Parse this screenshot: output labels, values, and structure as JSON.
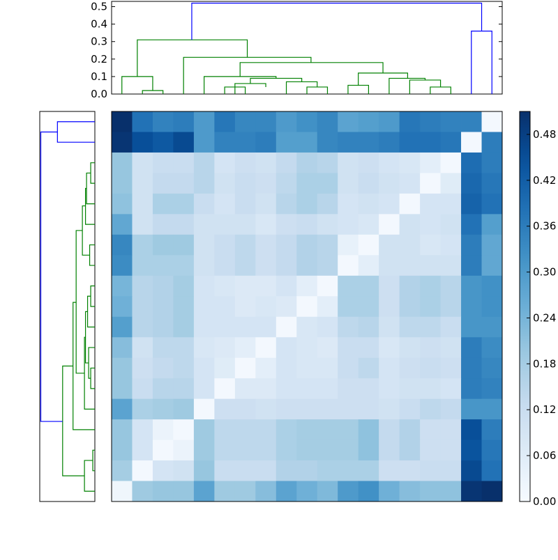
{
  "chart_data": [
    {
      "type": "heatmap",
      "title": "",
      "xlabel": "",
      "ylabel": "",
      "rows": 19,
      "cols": 19,
      "colormap": "Blues",
      "vmin": 0.0,
      "vmax": 0.51,
      "values": [
        [
          0.51,
          0.38,
          0.35,
          0.36,
          0.3,
          0.37,
          0.34,
          0.34,
          0.3,
          0.32,
          0.34,
          0.28,
          0.29,
          0.3,
          0.37,
          0.36,
          0.35,
          0.35,
          0.01
        ],
        [
          0.5,
          0.45,
          0.43,
          0.46,
          0.3,
          0.35,
          0.35,
          0.36,
          0.29,
          0.29,
          0.34,
          0.35,
          0.35,
          0.36,
          0.38,
          0.38,
          0.37,
          0.01,
          0.36
        ],
        [
          0.2,
          0.1,
          0.12,
          0.12,
          0.15,
          0.09,
          0.11,
          0.1,
          0.13,
          0.16,
          0.15,
          0.1,
          0.11,
          0.09,
          0.08,
          0.05,
          0.01,
          0.39,
          0.36
        ],
        [
          0.2,
          0.1,
          0.13,
          0.13,
          0.15,
          0.1,
          0.12,
          0.11,
          0.14,
          0.17,
          0.17,
          0.1,
          0.12,
          0.1,
          0.09,
          0.01,
          0.06,
          0.4,
          0.37
        ],
        [
          0.21,
          0.1,
          0.17,
          0.17,
          0.12,
          0.09,
          0.12,
          0.1,
          0.15,
          0.17,
          0.15,
          0.09,
          0.1,
          0.09,
          0.01,
          0.09,
          0.09,
          0.41,
          0.38
        ],
        [
          0.27,
          0.1,
          0.13,
          0.13,
          0.1,
          0.1,
          0.1,
          0.08,
          0.11,
          0.12,
          0.1,
          0.09,
          0.08,
          0.01,
          0.1,
          0.09,
          0.1,
          0.38,
          0.29
        ],
        [
          0.34,
          0.17,
          0.19,
          0.19,
          0.1,
          0.12,
          0.14,
          0.11,
          0.13,
          0.16,
          0.15,
          0.04,
          0.01,
          0.1,
          0.1,
          0.08,
          0.09,
          0.36,
          0.27
        ],
        [
          0.33,
          0.17,
          0.17,
          0.17,
          0.1,
          0.12,
          0.14,
          0.11,
          0.13,
          0.16,
          0.15,
          0.01,
          0.05,
          0.1,
          0.1,
          0.1,
          0.1,
          0.36,
          0.27
        ],
        [
          0.24,
          0.15,
          0.16,
          0.18,
          0.09,
          0.08,
          0.07,
          0.07,
          0.09,
          0.05,
          0.01,
          0.17,
          0.17,
          0.11,
          0.16,
          0.17,
          0.15,
          0.31,
          0.32
        ],
        [
          0.25,
          0.15,
          0.16,
          0.18,
          0.09,
          0.09,
          0.07,
          0.08,
          0.07,
          0.01,
          0.05,
          0.17,
          0.17,
          0.11,
          0.16,
          0.17,
          0.15,
          0.31,
          0.32
        ],
        [
          0.29,
          0.15,
          0.16,
          0.18,
          0.09,
          0.09,
          0.09,
          0.09,
          0.01,
          0.08,
          0.09,
          0.14,
          0.15,
          0.1,
          0.14,
          0.14,
          0.12,
          0.31,
          0.31
        ],
        [
          0.22,
          0.1,
          0.14,
          0.14,
          0.08,
          0.07,
          0.05,
          0.01,
          0.09,
          0.08,
          0.07,
          0.12,
          0.12,
          0.08,
          0.1,
          0.11,
          0.1,
          0.36,
          0.33
        ],
        [
          0.2,
          0.11,
          0.13,
          0.14,
          0.09,
          0.06,
          0.01,
          0.05,
          0.09,
          0.08,
          0.08,
          0.12,
          0.14,
          0.09,
          0.11,
          0.12,
          0.11,
          0.36,
          0.34
        ],
        [
          0.2,
          0.12,
          0.15,
          0.15,
          0.09,
          0.01,
          0.07,
          0.07,
          0.09,
          0.09,
          0.09,
          0.11,
          0.11,
          0.09,
          0.1,
          0.1,
          0.09,
          0.36,
          0.35
        ],
        [
          0.28,
          0.17,
          0.18,
          0.19,
          0.01,
          0.11,
          0.11,
          0.1,
          0.11,
          0.11,
          0.11,
          0.11,
          0.11,
          0.1,
          0.12,
          0.14,
          0.13,
          0.31,
          0.31
        ],
        [
          0.2,
          0.09,
          0.03,
          0.01,
          0.19,
          0.14,
          0.14,
          0.14,
          0.17,
          0.18,
          0.18,
          0.18,
          0.21,
          0.13,
          0.16,
          0.11,
          0.11,
          0.45,
          0.36
        ],
        [
          0.2,
          0.09,
          0.01,
          0.03,
          0.19,
          0.14,
          0.14,
          0.14,
          0.17,
          0.18,
          0.18,
          0.18,
          0.21,
          0.13,
          0.16,
          0.11,
          0.11,
          0.44,
          0.37
        ],
        [
          0.18,
          0.01,
          0.09,
          0.1,
          0.2,
          0.12,
          0.12,
          0.12,
          0.16,
          0.16,
          0.17,
          0.17,
          0.17,
          0.11,
          0.11,
          0.12,
          0.12,
          0.46,
          0.38
        ],
        [
          0.02,
          0.19,
          0.2,
          0.2,
          0.28,
          0.19,
          0.19,
          0.22,
          0.28,
          0.25,
          0.23,
          0.3,
          0.32,
          0.25,
          0.22,
          0.21,
          0.21,
          0.5,
          0.51
        ]
      ]
    },
    {
      "type": "dendrogram",
      "orientation": "top",
      "ylim": [
        0,
        0.53
      ],
      "yticks": [
        "0.0",
        "0.1",
        "0.2",
        "0.3",
        "0.4",
        "0.5"
      ],
      "links": [
        {
          "color": "#008000",
          "x": [
            1.5,
            1.5,
            2.5,
            2.5
          ],
          "y": [
            0,
            0.02,
            0.02,
            0
          ]
        },
        {
          "color": "#008000",
          "x": [
            0.5,
            0.5,
            2.0,
            2.0
          ],
          "y": [
            0,
            0.1,
            0.1,
            0.02
          ]
        },
        {
          "color": "#008000",
          "x": [
            5.5,
            5.5,
            6.5,
            6.5
          ],
          "y": [
            0,
            0.04,
            0.04,
            0
          ]
        },
        {
          "color": "#008000",
          "x": [
            6.0,
            6.0,
            7.5,
            7.5
          ],
          "y": [
            0,
            0.06,
            0.06,
            0.04
          ]
        },
        {
          "color": "#008000",
          "x": [
            9.5,
            9.5,
            10.5,
            10.5
          ],
          "y": [
            0,
            0.04,
            0.04,
            0
          ]
        },
        {
          "color": "#008000",
          "x": [
            8.5,
            8.5,
            10.0,
            10.0
          ],
          "y": [
            0,
            0.07,
            0.07,
            0.04
          ]
        },
        {
          "color": "#008000",
          "x": [
            6.75,
            6.75,
            9.25,
            9.25
          ],
          "y": [
            0.06,
            0.09,
            0.09,
            0.07
          ]
        },
        {
          "color": "#008000",
          "x": [
            4.5,
            4.5,
            8.0,
            8.0
          ],
          "y": [
            0,
            0.1,
            0.1,
            0.09
          ]
        },
        {
          "color": "#008000",
          "x": [
            11.5,
            11.5,
            12.5,
            12.5
          ],
          "y": [
            0,
            0.05,
            0.05,
            0
          ]
        },
        {
          "color": "#008000",
          "x": [
            15.5,
            15.5,
            16.5,
            16.5
          ],
          "y": [
            0,
            0.04,
            0.04,
            0
          ]
        },
        {
          "color": "#008000",
          "x": [
            14.5,
            14.5,
            16.0,
            16.0
          ],
          "y": [
            0,
            0.08,
            0.08,
            0.04
          ]
        },
        {
          "color": "#008000",
          "x": [
            13.5,
            13.5,
            15.25,
            15.25
          ],
          "y": [
            0,
            0.09,
            0.09,
            0.08
          ]
        },
        {
          "color": "#008000",
          "x": [
            12.0,
            12.0,
            14.4,
            14.4
          ],
          "y": [
            0.05,
            0.12,
            0.12,
            0.09
          ]
        },
        {
          "color": "#008000",
          "x": [
            6.25,
            6.25,
            13.2,
            13.2
          ],
          "y": [
            0.1,
            0.18,
            0.18,
            0.12
          ]
        },
        {
          "color": "#008000",
          "x": [
            3.5,
            3.5,
            9.7,
            9.7
          ],
          "y": [
            0,
            0.21,
            0.21,
            0.18
          ]
        },
        {
          "color": "#008000",
          "x": [
            1.25,
            1.25,
            6.6,
            6.6
          ],
          "y": [
            0.1,
            0.31,
            0.31,
            0.21
          ]
        },
        {
          "color": "#0000ff",
          "x": [
            17.5,
            17.5,
            18.5,
            18.5
          ],
          "y": [
            0,
            0.36,
            0.36,
            0
          ]
        },
        {
          "color": "#0000ff",
          "x": [
            3.9,
            3.9,
            18.0,
            18.0
          ],
          "y": [
            0.31,
            0.52,
            0.52,
            0.36
          ]
        }
      ]
    },
    {
      "type": "dendrogram",
      "orientation": "left",
      "xlim": [
        0,
        0.53
      ],
      "links": [
        {
          "color": "#008000",
          "x": [
            0,
            0.02,
            0.02,
            0
          ],
          "y": [
            1.5,
            1.5,
            2.5,
            2.5
          ]
        },
        {
          "color": "#008000",
          "x": [
            0,
            0.1,
            0.1,
            0.02
          ],
          "y": [
            0.5,
            0.5,
            2.0,
            2.0
          ]
        },
        {
          "color": "#008000",
          "x": [
            0,
            0.04,
            0.04,
            0
          ],
          "y": [
            5.5,
            5.5,
            6.5,
            6.5
          ]
        },
        {
          "color": "#008000",
          "x": [
            0.04,
            0.06,
            0.06,
            0
          ],
          "y": [
            6.0,
            6.0,
            7.5,
            7.5
          ]
        },
        {
          "color": "#008000",
          "x": [
            0,
            0.04,
            0.04,
            0
          ],
          "y": [
            9.5,
            9.5,
            10.5,
            10.5
          ]
        },
        {
          "color": "#008000",
          "x": [
            0,
            0.07,
            0.07,
            0.04
          ],
          "y": [
            8.5,
            8.5,
            10.0,
            10.0
          ]
        },
        {
          "color": "#008000",
          "x": [
            0.06,
            0.09,
            0.09,
            0.07
          ],
          "y": [
            6.75,
            6.75,
            9.25,
            9.25
          ]
        },
        {
          "color": "#008000",
          "x": [
            0,
            0.1,
            0.1,
            0.09
          ],
          "y": [
            4.5,
            4.5,
            8.0,
            8.0
          ]
        },
        {
          "color": "#008000",
          "x": [
            0,
            0.05,
            0.05,
            0
          ],
          "y": [
            11.5,
            11.5,
            12.5,
            12.5
          ]
        },
        {
          "color": "#008000",
          "x": [
            0,
            0.04,
            0.04,
            0
          ],
          "y": [
            15.5,
            15.5,
            16.5,
            16.5
          ]
        },
        {
          "color": "#008000",
          "x": [
            0,
            0.08,
            0.08,
            0.04
          ],
          "y": [
            14.5,
            14.5,
            16.0,
            16.0
          ]
        },
        {
          "color": "#008000",
          "x": [
            0,
            0.09,
            0.09,
            0.08
          ],
          "y": [
            13.5,
            13.5,
            15.25,
            15.25
          ]
        },
        {
          "color": "#008000",
          "x": [
            0.05,
            0.12,
            0.12,
            0.09
          ],
          "y": [
            12.0,
            12.0,
            14.4,
            14.4
          ]
        },
        {
          "color": "#008000",
          "x": [
            0.1,
            0.18,
            0.18,
            0.12
          ],
          "y": [
            6.25,
            6.25,
            13.2,
            13.2
          ]
        },
        {
          "color": "#008000",
          "x": [
            0,
            0.21,
            0.21,
            0.18
          ],
          "y": [
            3.5,
            3.5,
            9.7,
            9.7
          ]
        },
        {
          "color": "#008000",
          "x": [
            0.1,
            0.31,
            0.31,
            0.21
          ],
          "y": [
            1.25,
            1.25,
            6.6,
            6.6
          ]
        },
        {
          "color": "#0000ff",
          "x": [
            0,
            0.36,
            0.36,
            0
          ],
          "y": [
            17.5,
            17.5,
            18.5,
            18.5
          ]
        },
        {
          "color": "#0000ff",
          "x": [
            0.31,
            0.52,
            0.52,
            0.36
          ],
          "y": [
            3.9,
            3.9,
            18.0,
            18.0
          ]
        }
      ]
    },
    {
      "type": "colorbar",
      "colormap": "Blues",
      "range": [
        0.0,
        0.51
      ],
      "ticks": [
        "0.00",
        "0.06",
        "0.12",
        "0.18",
        "0.24",
        "0.30",
        "0.36",
        "0.42",
        "0.48"
      ]
    }
  ]
}
